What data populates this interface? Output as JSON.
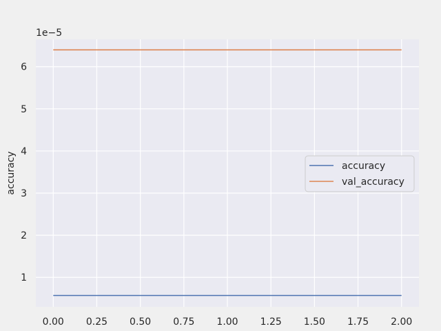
{
  "chart_data": {
    "type": "line",
    "title": "",
    "xlabel": "",
    "ylabel": "accuracy",
    "y_offset_label": "1e−5",
    "x": [
      0,
      1,
      2
    ],
    "xlim": [
      -0.1,
      2.1
    ],
    "ylim": [
      0.3,
      6.65
    ],
    "x_ticks": [
      "0.00",
      "0.25",
      "0.50",
      "0.75",
      "1.00",
      "1.25",
      "1.50",
      "1.75",
      "2.00"
    ],
    "y_ticks": [
      "1",
      "2",
      "3",
      "4",
      "5",
      "6"
    ],
    "grid": true,
    "legend_position": "center-right",
    "series": [
      {
        "name": "accuracy",
        "values": [
          0.57,
          0.57,
          0.57
        ],
        "color": "#4c72b0"
      },
      {
        "name": "val_accuracy",
        "values": [
          6.4,
          6.4,
          6.4
        ],
        "color": "#dd8452"
      }
    ],
    "colors": {
      "plot_background": "#eaeaf2",
      "figure_background": "#f0f0f0",
      "grid": "#ffffff"
    }
  }
}
